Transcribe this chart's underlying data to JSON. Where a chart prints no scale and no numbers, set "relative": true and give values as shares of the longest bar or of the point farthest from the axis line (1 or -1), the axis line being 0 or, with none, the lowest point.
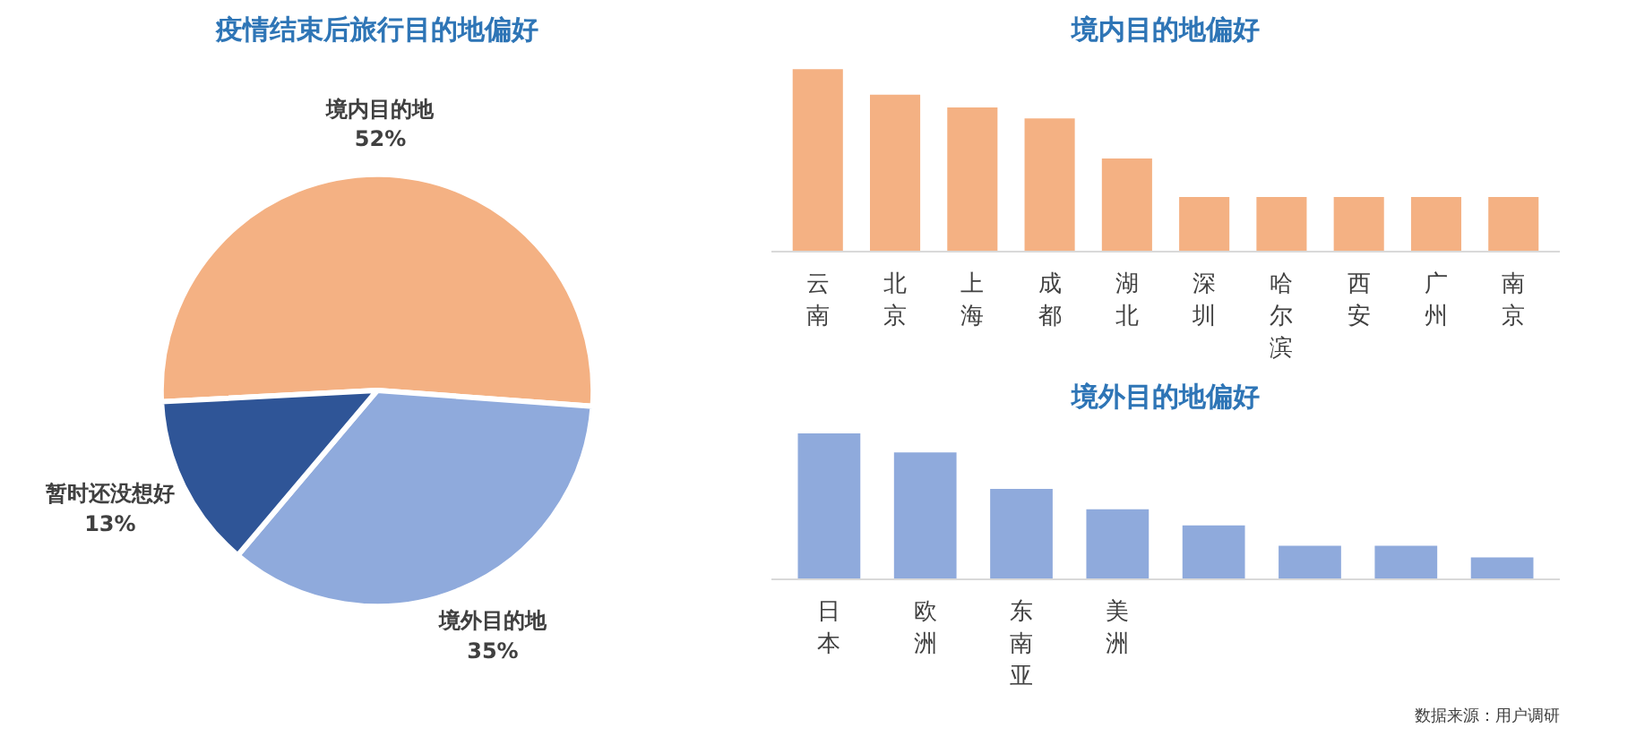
{
  "chart_data": [
    {
      "type": "pie",
      "title": "疫情结束后旅行目的地偏好",
      "categories": [
        "境内目的地",
        "境外目的地",
        "暂时还没想好"
      ],
      "values": [
        52,
        35,
        13
      ],
      "value_labels": [
        "52%",
        "35%",
        "13%"
      ],
      "colors": [
        "#f4b183",
        "#8faadc",
        "#2f5597"
      ]
    },
    {
      "type": "bar",
      "title": "境内目的地偏好",
      "relative": true,
      "categories": [
        "云南",
        "北京",
        "上海",
        "成都",
        "湖北",
        "深圳",
        "哈尔滨",
        "西安",
        "广州",
        "南京"
      ],
      "values": [
        1,
        0.86,
        0.79,
        0.73,
        0.51,
        0.3,
        0.3,
        0.3,
        0.3,
        0.3
      ],
      "color": "#f4b183"
    },
    {
      "type": "bar",
      "title": "境外目的地偏好",
      "relative": true,
      "categories": [
        "日本",
        "欧洲",
        "东南亚",
        "美洲",
        null,
        null,
        null,
        null
      ],
      "values": [
        1,
        0.87,
        0.62,
        0.48,
        0.37,
        0.23,
        0.23,
        0.15
      ],
      "color": "#8faadc",
      "annotations": [
        "数据来源：用户调研"
      ]
    }
  ]
}
